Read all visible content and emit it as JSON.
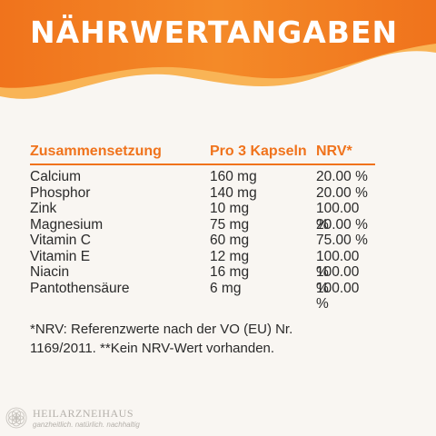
{
  "header": {
    "title": "NÄHRWERTANGABEN"
  },
  "colors": {
    "accent": "#f0731c",
    "banner_light": "#f7a13a",
    "background": "#f9f6f2"
  },
  "table": {
    "columns": [
      "Zusammensetzung",
      "Pro 3 Kapseln",
      "NRV*"
    ],
    "rows": [
      {
        "name": "Calcium",
        "amount": "160 mg",
        "nrv": "20.00 %"
      },
      {
        "name": "Phosphor",
        "amount": "140 mg",
        "nrv": "20.00 %"
      },
      {
        "name": "Zink",
        "amount": "10 mg",
        "nrv": "100.00 %"
      },
      {
        "name": "Magnesium",
        "amount": "75 mg",
        "nrv": "20.00 %"
      },
      {
        "name": "Vitamin C",
        "amount": "60 mg",
        "nrv": "75.00 %"
      },
      {
        "name": "Vitamin E",
        "amount": "12 mg",
        "nrv": "100.00 %"
      },
      {
        "name": "Niacin",
        "amount": "16 mg",
        "nrv": "100.00 %"
      },
      {
        "name": "Pantothensäure",
        "amount": "6 mg",
        "nrv": "100.00 %"
      }
    ]
  },
  "footnote": {
    "line1": "*NRV: Referenzwerte nach der VO (EU) Nr.",
    "line2": "1169/2011. **Kein NRV-Wert vorhanden."
  },
  "brand": {
    "name": "HEILARZNEIHAUS",
    "tagline": "ganzheitlich. natürlich. nachhaltig",
    "logo_icon": "flower-of-life-icon"
  }
}
